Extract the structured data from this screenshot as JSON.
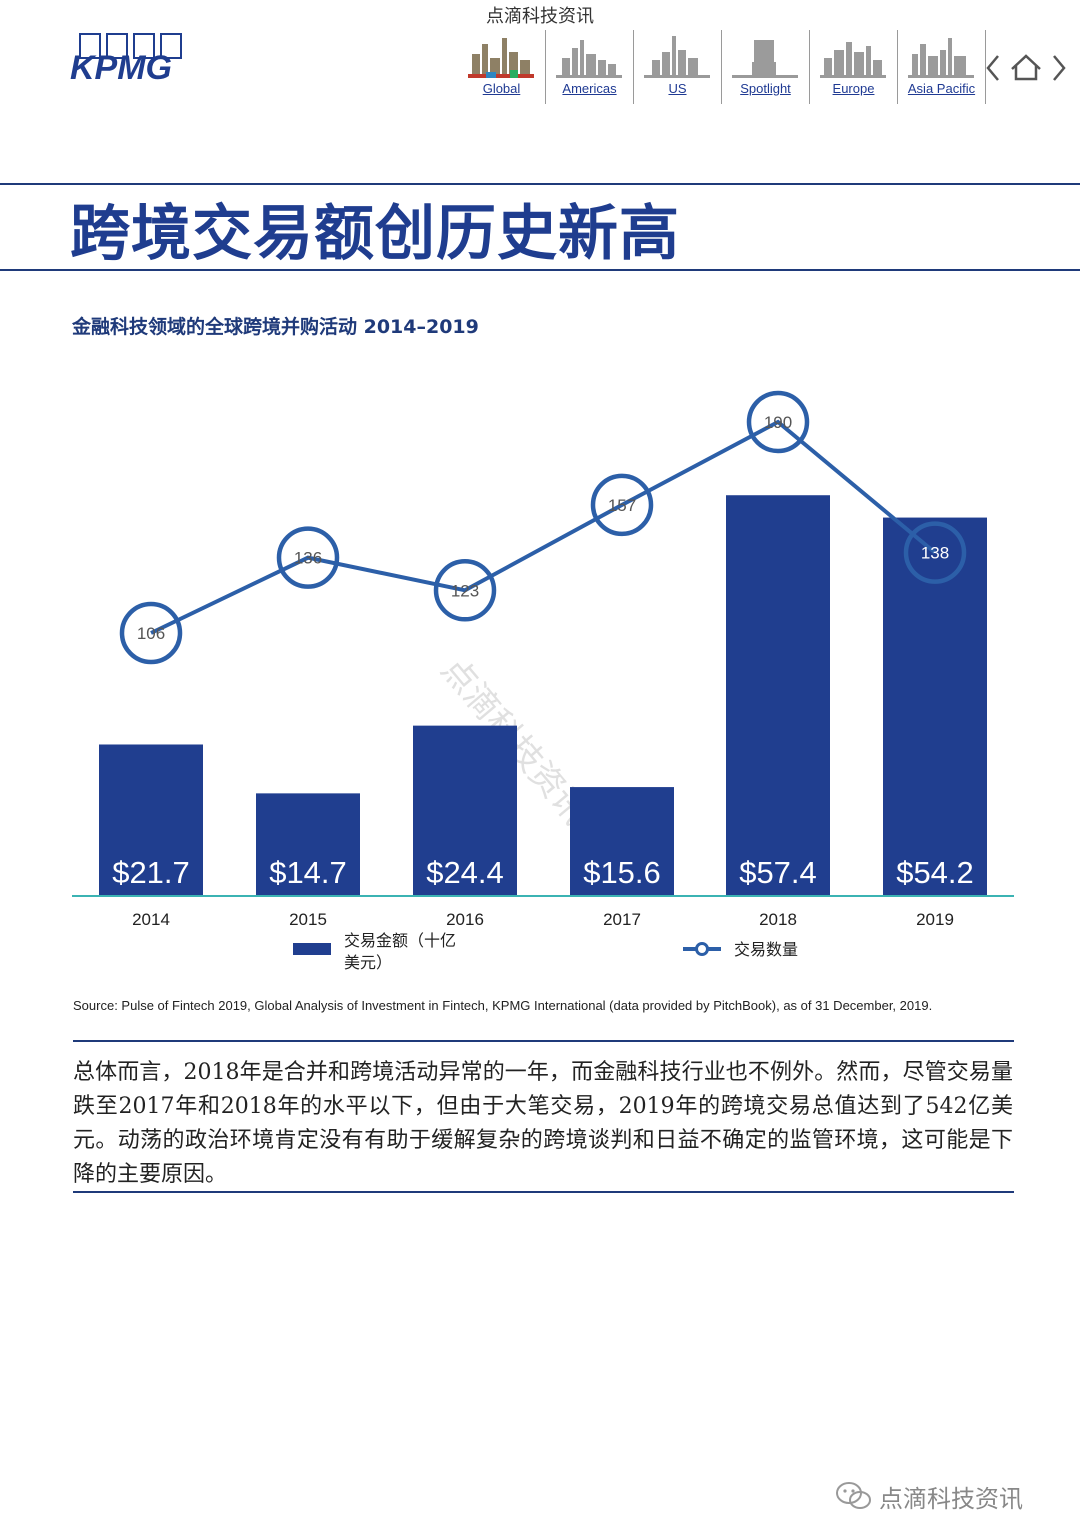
{
  "watermark_top": "点滴科技资讯",
  "logo_text": "KPMG",
  "nav": {
    "items": [
      {
        "label": "Global",
        "icon": "global-skyline-icon"
      },
      {
        "label": "Americas",
        "icon": "americas-skyline-icon"
      },
      {
        "label": "US",
        "icon": "us-skyline-icon"
      },
      {
        "label": "Spotlight",
        "icon": "spotlight-icon"
      },
      {
        "label": "Europe",
        "icon": "europe-skyline-icon"
      },
      {
        "label": "Asia Pacific",
        "icon": "asia-pacific-skyline-icon"
      }
    ]
  },
  "page_title": "跨境交易额创历史新高",
  "chart_title": "金融科技领域的全球跨境并购活动 2014–2019",
  "chart_data": {
    "type": "bar",
    "categories": [
      "2014",
      "2015",
      "2016",
      "2017",
      "2018",
      "2019"
    ],
    "series": [
      {
        "name": "交易金额（十亿美元）",
        "type": "bar",
        "values": [
          21.7,
          14.7,
          24.4,
          15.6,
          57.4,
          54.2
        ],
        "labels": [
          "$21.7",
          "$14.7",
          "$24.4",
          "$15.6",
          "$57.4",
          "$54.2"
        ]
      },
      {
        "name": "交易数量",
        "type": "line",
        "values": [
          106,
          136,
          123,
          157,
          190,
          138
        ]
      }
    ],
    "colors": {
      "bar": "#203e8f",
      "line": "#2c5fa8",
      "axis": "#3bb3b3"
    }
  },
  "legend": {
    "bar_label": "交易金额（十亿美元）",
    "line_label": "交易数量"
  },
  "diagonal_watermark": "点滴科技资讯",
  "source": "Source: Pulse of Fintech 2019, Global Analysis of Investment in Fintech, KPMG International (data provided by PitchBook), as of 31 December, 2019.",
  "body_text": "总体而言，2018年是合并和跨境活动异常的一年，而金融科技行业也不例外。然而，尽管交易量跌至2017年和2018年的水平以下，但由于大笔交易，2019年的跨境交易总值达到了542亿美元。动荡的政治环境肯定没有有助于缓解复杂的跨境谈判和日益不确定的监管环境，这可能是下降的主要原因。",
  "bottom_watermark": "点滴科技资讯"
}
